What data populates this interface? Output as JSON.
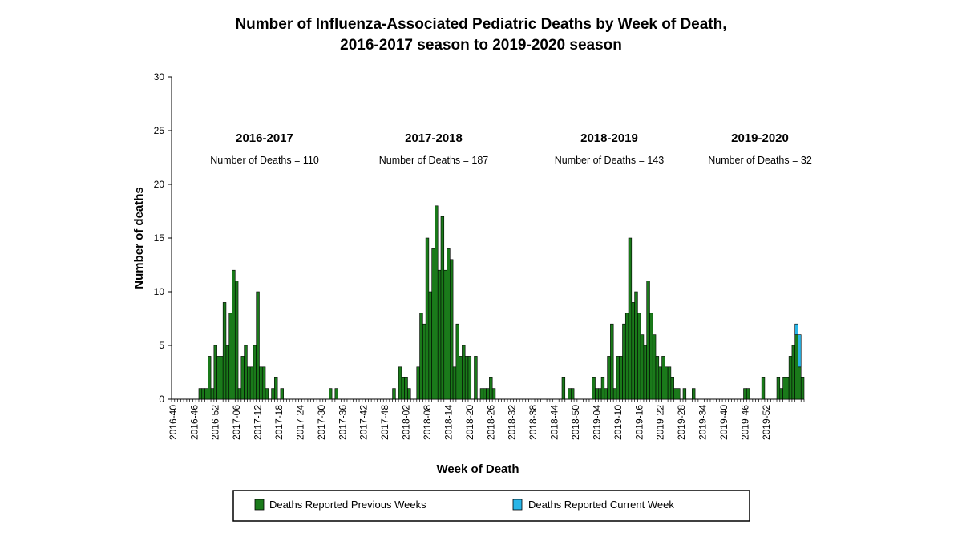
{
  "chart_data": {
    "type": "bar",
    "title_line1": "Number of Influenza-Associated Pediatric Deaths by Week of Death,",
    "title_line2": "2016-2017 season to 2019-2020 season",
    "xlabel": "Week of Death",
    "ylabel": "Number of deaths",
    "ylim": [
      0,
      30
    ],
    "yticks": [
      0,
      5,
      10,
      15,
      20,
      25,
      30
    ],
    "grid": false,
    "legend_position": "bottom",
    "x_tick_labels": [
      "2016-40",
      "2016-46",
      "2016-52",
      "2017-06",
      "2017-12",
      "2017-18",
      "2017-24",
      "2017-30",
      "2017-36",
      "2017-42",
      "2017-48",
      "2018-02",
      "2018-08",
      "2018-14",
      "2018-20",
      "2018-26",
      "2018-32",
      "2018-38",
      "2018-44",
      "2018-50",
      "2019-04",
      "2019-10",
      "2019-16",
      "2019-22",
      "2019-28",
      "2019-34",
      "2019-40",
      "2019-46",
      "2019-52"
    ],
    "seasons": [
      {
        "label": "2016-2017",
        "count_text": "Number of Deaths = 110"
      },
      {
        "label": "2017-2018",
        "count_text": "Number of Deaths = 187"
      },
      {
        "label": "2018-2019",
        "count_text": "Number of Deaths = 143"
      },
      {
        "label": "2019-2020",
        "count_text": "Number of Deaths = 32"
      }
    ],
    "series": [
      {
        "name": "Deaths Reported Previous Weeks",
        "color": "#1a7a1a",
        "values": [
          0,
          0,
          0,
          0,
          0,
          0,
          0,
          0,
          0,
          1,
          1,
          1,
          4,
          1,
          5,
          4,
          4,
          9,
          5,
          8,
          12,
          11,
          1,
          4,
          5,
          3,
          3,
          5,
          10,
          3,
          3,
          1,
          0,
          1,
          2,
          0,
          1,
          0,
          0,
          0,
          0,
          0,
          0,
          0,
          0,
          0,
          0,
          0,
          0,
          0,
          0,
          0,
          1,
          0,
          1,
          0,
          0,
          0,
          0,
          0,
          0,
          0,
          0,
          0,
          0,
          0,
          0,
          0,
          0,
          0,
          0,
          0,
          0,
          1,
          0,
          3,
          2,
          2,
          1,
          0,
          0,
          3,
          8,
          7,
          15,
          10,
          14,
          18,
          12,
          17,
          12,
          14,
          13,
          3,
          7,
          4,
          5,
          4,
          4,
          0,
          4,
          0,
          1,
          1,
          1,
          2,
          1,
          0,
          0,
          0,
          0,
          0,
          0,
          0,
          0,
          0,
          0,
          0,
          0,
          0,
          0,
          0,
          0,
          0,
          0,
          0,
          0,
          0,
          0,
          2,
          0,
          1,
          1,
          0,
          0,
          0,
          0,
          0,
          0,
          2,
          1,
          1,
          2,
          1,
          4,
          7,
          1,
          4,
          4,
          7,
          8,
          15,
          9,
          10,
          8,
          6,
          5,
          11,
          8,
          6,
          4,
          3,
          4,
          3,
          3,
          2,
          1,
          1,
          0,
          1,
          0,
          0,
          1,
          0,
          0,
          0,
          0,
          0,
          0,
          0,
          0,
          0,
          0,
          0,
          0,
          0,
          0,
          0,
          0,
          1,
          1,
          0,
          0,
          0,
          0,
          2,
          0,
          0,
          0,
          0,
          2,
          1,
          2,
          2,
          4,
          5,
          6,
          3,
          2
        ]
      },
      {
        "name": "Deaths Reported Current Week",
        "color": "#29b6e8",
        "values": [
          0,
          0,
          0,
          0,
          0,
          0,
          0,
          0,
          0,
          0,
          0,
          0,
          0,
          0,
          0,
          0,
          0,
          0,
          0,
          0,
          0,
          0,
          0,
          0,
          0,
          0,
          0,
          0,
          0,
          0,
          0,
          0,
          0,
          0,
          0,
          0,
          0,
          0,
          0,
          0,
          0,
          0,
          0,
          0,
          0,
          0,
          0,
          0,
          0,
          0,
          0,
          0,
          0,
          0,
          0,
          0,
          0,
          0,
          0,
          0,
          0,
          0,
          0,
          0,
          0,
          0,
          0,
          0,
          0,
          0,
          0,
          0,
          0,
          0,
          0,
          0,
          0,
          0,
          0,
          0,
          0,
          0,
          0,
          0,
          0,
          0,
          0,
          0,
          0,
          0,
          0,
          0,
          0,
          0,
          0,
          0,
          0,
          0,
          0,
          0,
          0,
          0,
          0,
          0,
          0,
          0,
          0,
          0,
          0,
          0,
          0,
          0,
          0,
          0,
          0,
          0,
          0,
          0,
          0,
          0,
          0,
          0,
          0,
          0,
          0,
          0,
          0,
          0,
          0,
          0,
          0,
          0,
          0,
          0,
          0,
          0,
          0,
          0,
          0,
          0,
          0,
          0,
          0,
          0,
          0,
          0,
          0,
          0,
          0,
          0,
          0,
          0,
          0,
          0,
          0,
          0,
          0,
          0,
          0,
          0,
          0,
          0,
          0,
          0,
          0,
          0,
          0,
          0,
          0,
          0,
          0,
          0,
          0,
          0,
          0,
          0,
          0,
          0,
          0,
          0,
          0,
          0,
          0,
          0,
          0,
          0,
          0,
          0,
          0,
          0,
          0,
          0,
          0,
          0,
          0,
          0,
          0,
          0,
          0,
          0,
          0,
          0,
          0,
          0,
          0,
          0,
          1,
          3
        ]
      }
    ]
  }
}
